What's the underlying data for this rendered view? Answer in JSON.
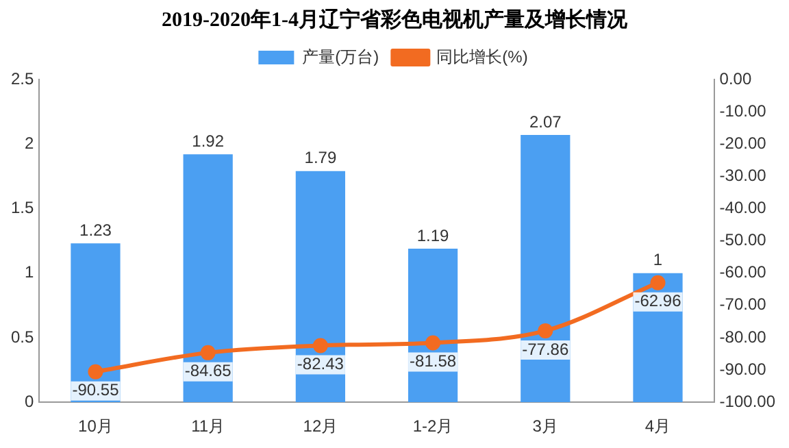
{
  "chart_data": {
    "type": "bar",
    "title": "2019-2020年1-4月辽宁省彩色电视机产量及增长情况",
    "categories": [
      "10月",
      "11月",
      "12月",
      "1-2月",
      "3月",
      "4月"
    ],
    "series": [
      {
        "name": "产量(万台)",
        "color": "#4b9ff2",
        "values": [
          1.23,
          1.92,
          1.79,
          1.19,
          2.07,
          1
        ]
      },
      {
        "name": "同比增长(%)",
        "type": "line",
        "axis": "y2",
        "color": "#f26b21",
        "values": [
          -90.55,
          -84.65,
          -82.43,
          -81.58,
          -77.86,
          -62.96
        ]
      }
    ],
    "ylim": [
      0,
      2.5
    ],
    "yticks": [
      0,
      0.5,
      1,
      1.5,
      2,
      2.5
    ],
    "y2lim": [
      -100,
      0
    ],
    "y2ticks": [
      {
        "value": 0,
        "label": "0.00"
      },
      {
        "value": -10,
        "label": "-10.00"
      },
      {
        "value": -20,
        "label": "-20.00"
      },
      {
        "value": -30,
        "label": "-30.00"
      },
      {
        "value": -40,
        "label": "-40.00"
      },
      {
        "value": -50,
        "label": "-50.00"
      },
      {
        "value": -60,
        "label": "-60.00"
      },
      {
        "value": -70,
        "label": "-70.00"
      },
      {
        "value": -80,
        "label": "-80.00"
      },
      {
        "value": -90,
        "label": "-90.00"
      },
      {
        "value": -100,
        "label": "-100.00"
      }
    ],
    "legend": "top",
    "marker": "circle",
    "grid": false,
    "data_labels": true
  }
}
